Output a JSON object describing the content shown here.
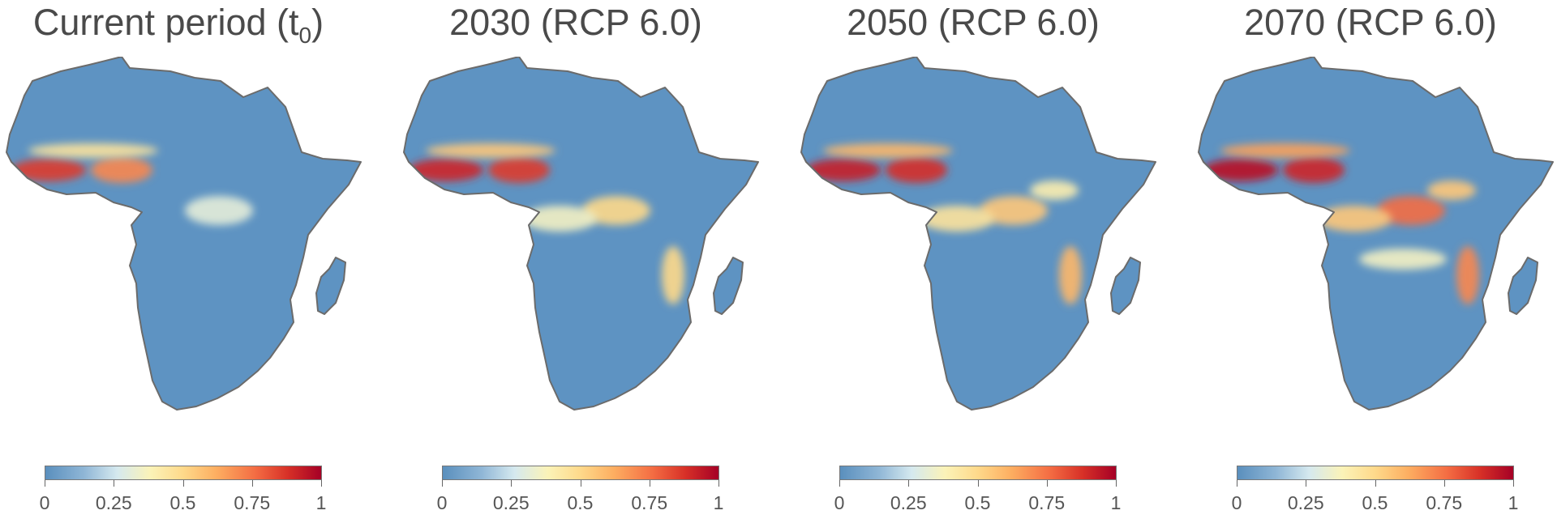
{
  "colors": {
    "land_base": "#5e93c2",
    "outline": "#6b6b6b",
    "scale": [
      "#5a8fbd",
      "#8fb6d6",
      "#d5e9ef",
      "#fbf3b8",
      "#fed98a",
      "#fdae61",
      "#f46d43",
      "#d73027",
      "#a50026"
    ]
  },
  "legend": {
    "ticks": [
      "0",
      "0.25",
      "0.5",
      "0.75",
      "1"
    ],
    "values": [
      0,
      0.25,
      0.5,
      0.75,
      1
    ]
  },
  "panels": [
    {
      "title_main": "Current period (t",
      "title_sub": "0",
      "title_end": ")",
      "hotspots": [
        {
          "region": "guinea-coast",
          "value": 0.85
        },
        {
          "region": "nigeria",
          "value": 0.7
        },
        {
          "region": "sahel-west",
          "value": 0.45
        },
        {
          "region": "great-lakes",
          "value": 0.3
        }
      ]
    },
    {
      "title_main": "2030 (RCP 6.0)",
      "title_sub": "",
      "title_end": "",
      "hotspots": [
        {
          "region": "guinea-coast",
          "value": 0.9
        },
        {
          "region": "nigeria",
          "value": 0.85
        },
        {
          "region": "sahel-west",
          "value": 0.55
        },
        {
          "region": "great-lakes",
          "value": 0.5
        },
        {
          "region": "congo",
          "value": 0.35
        },
        {
          "region": "mozambique-coast",
          "value": 0.5
        }
      ]
    },
    {
      "title_main": "2050 (RCP 6.0)",
      "title_sub": "",
      "title_end": "",
      "hotspots": [
        {
          "region": "guinea-coast",
          "value": 0.92
        },
        {
          "region": "nigeria",
          "value": 0.88
        },
        {
          "region": "sahel-west",
          "value": 0.6
        },
        {
          "region": "great-lakes",
          "value": 0.55
        },
        {
          "region": "congo",
          "value": 0.45
        },
        {
          "region": "mozambique-coast",
          "value": 0.6
        },
        {
          "region": "east-africa",
          "value": 0.4
        }
      ]
    },
    {
      "title_main": "2070 (RCP 6.0)",
      "title_sub": "",
      "title_end": "",
      "hotspots": [
        {
          "region": "guinea-coast",
          "value": 0.95
        },
        {
          "region": "nigeria",
          "value": 0.9
        },
        {
          "region": "sahel-west",
          "value": 0.65
        },
        {
          "region": "great-lakes",
          "value": 0.75
        },
        {
          "region": "congo",
          "value": 0.55
        },
        {
          "region": "mozambique-coast",
          "value": 0.7
        },
        {
          "region": "east-africa",
          "value": 0.55
        },
        {
          "region": "southern-africa",
          "value": 0.35
        }
      ]
    }
  ]
}
